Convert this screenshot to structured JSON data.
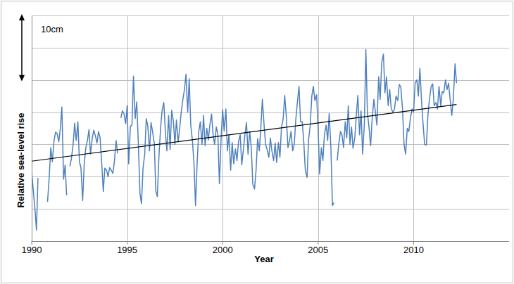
{
  "chart_data": {
    "type": "line",
    "x_label": "Year",
    "y_label": "Relative sea-level rise",
    "annotations": [
      {
        "text": "10cm",
        "value": 10
      }
    ],
    "xlim": [
      1990,
      2015
    ],
    "ylim": [
      0,
      35
    ],
    "xticks": [
      1990,
      1995,
      2000,
      2005,
      2010
    ],
    "yticks": [
      0,
      5,
      10,
      15,
      20,
      25,
      30,
      35
    ],
    "grid": true,
    "tick_labels": "x",
    "series": [
      {
        "color": "#4f81bd",
        "x": [
          1990,
          1990.08,
          1990.17,
          1990.25,
          1990.33,
          1990.42,
          1990.5,
          1990.58,
          1990.67,
          1990.75,
          1990.83,
          1990.92,
          1991,
          1991.08,
          1991.17,
          1991.25,
          1991.33,
          1991.42,
          1991.5,
          1991.58,
          1991.67,
          1991.75,
          1991.83,
          1991.92,
          1992,
          1992.08,
          1992.17,
          1992.25,
          1992.33,
          1992.42,
          1992.5,
          1992.58,
          1992.67,
          1992.75,
          1992.83,
          1992.92,
          1993,
          1993.08,
          1993.17,
          1993.25,
          1993.33,
          1993.42,
          1993.5,
          1993.58,
          1993.67,
          1993.75,
          1993.83,
          1993.92,
          1994,
          1994.08,
          1994.17,
          1994.25,
          1994.33,
          1994.42,
          1994.5,
          1994.58,
          1994.67,
          1994.75,
          1994.83,
          1994.92,
          1995,
          1995.08,
          1995.17,
          1995.25,
          1995.33,
          1995.42,
          1995.5,
          1995.58,
          1995.67,
          1995.75,
          1995.83,
          1995.92,
          1996,
          1996.08,
          1996.17,
          1996.25,
          1996.33,
          1996.42,
          1996.5,
          1996.58,
          1996.67,
          1996.75,
          1996.83,
          1996.92,
          1997,
          1997.08,
          1997.17,
          1997.25,
          1997.33,
          1997.42,
          1997.5,
          1997.58,
          1997.67,
          1997.75,
          1997.83,
          1997.92,
          1998,
          1998.08,
          1998.17,
          1998.25,
          1998.33,
          1998.42,
          1998.5,
          1998.58,
          1998.67,
          1998.75,
          1998.83,
          1998.92,
          1999,
          1999.08,
          1999.17,
          1999.25,
          1999.33,
          1999.42,
          1999.5,
          1999.58,
          1999.67,
          1999.75,
          1999.83,
          1999.92,
          2000,
          2000.08,
          2000.17,
          2000.25,
          2000.33,
          2000.42,
          2000.5,
          2000.58,
          2000.67,
          2000.75,
          2000.83,
          2000.92,
          2001,
          2001.08,
          2001.17,
          2001.25,
          2001.33,
          2001.42,
          2001.5,
          2001.58,
          2001.67,
          2001.75,
          2001.83,
          2001.92,
          2002,
          2002.08,
          2002.17,
          2002.25,
          2002.33,
          2002.42,
          2002.5,
          2002.58,
          2002.67,
          2002.75,
          2002.83,
          2002.92,
          2003,
          2003.08,
          2003.17,
          2003.25,
          2003.33,
          2003.42,
          2003.5,
          2003.58,
          2003.67,
          2003.75,
          2003.83,
          2003.92,
          2004,
          2004.08,
          2004.17,
          2004.25,
          2004.33,
          2004.42,
          2004.5,
          2004.58,
          2004.67,
          2004.75,
          2004.83,
          2004.92,
          2005,
          2005.08,
          2005.17,
          2005.25,
          2005.33,
          2005.42,
          2005.5,
          2005.58,
          2005.67,
          2005.75,
          2005.83,
          2005.92,
          2006,
          2006.08,
          2006.17,
          2006.25,
          2006.33,
          2006.42,
          2006.5,
          2006.58,
          2006.67,
          2006.75,
          2006.83,
          2006.92,
          2007,
          2007.08,
          2007.17,
          2007.25,
          2007.33,
          2007.42,
          2007.5,
          2007.58,
          2007.67,
          2007.75,
          2007.83,
          2007.92,
          2008,
          2008.08,
          2008.17,
          2008.25,
          2008.33,
          2008.42,
          2008.5,
          2008.58,
          2008.67,
          2008.75,
          2008.83,
          2008.92,
          2009,
          2009.08,
          2009.17,
          2009.25,
          2009.33,
          2009.42,
          2009.5,
          2009.58,
          2009.67,
          2009.75,
          2009.83,
          2009.92,
          2010,
          2010.08,
          2010.17,
          2010.25,
          2010.33,
          2010.42,
          2010.5,
          2010.58,
          2010.67,
          2010.75,
          2010.83,
          2010.92,
          2011,
          2011.08,
          2011.17,
          2011.25,
          2011.33,
          2011.42,
          2011.5,
          2011.58,
          2011.67,
          2011.75,
          2011.83,
          2011.92,
          2012,
          2012.08,
          2012.17,
          2012.25
        ],
        "values": [
          10.7,
          8.0,
          5.0,
          1.7,
          9.8,
          null,
          null,
          null,
          null,
          null,
          6.1,
          10.0,
          14.5,
          12.3,
          15.6,
          16.9,
          16.7,
          15.4,
          17.5,
          20.8,
          9.6,
          11.8,
          7.1,
          null,
          11.6,
          12.8,
          15.0,
          18.3,
          15.6,
          18.5,
          12.3,
          11.4,
          6.3,
          11.9,
          14.4,
          15.6,
          17.3,
          13.5,
          15.9,
          17.2,
          16.4,
          15.2,
          17.0,
          16.1,
          12.0,
          7.7,
          11.3,
          11.0,
          10.0,
          11.4,
          11.0,
          10.5,
          12.3,
          15.6,
          13.6,
          null,
          19.1,
          20.2,
          19.8,
          18.2,
          21.0,
          12.0,
          17.8,
          18.0,
          25.6,
          19.0,
          21.6,
          15.6,
          7.4,
          5.8,
          11.3,
          13.5,
          19.0,
          17.9,
          14.0,
          18.4,
          17.0,
          15.2,
          7.8,
          6.9,
          13.5,
          17.5,
          20.3,
          21.5,
          17.0,
          14.0,
          19.5,
          14.2,
          20.3,
          18.6,
          15.0,
          18.8,
          15.4,
          17.5,
          20.0,
          22.0,
          23.5,
          25.9,
          20.0,
          25.2,
          18.0,
          15.5,
          12.0,
          5.5,
          12.5,
          17.0,
          18.5,
          15.0,
          19.5,
          14.8,
          17.5,
          15.7,
          18.0,
          19.7,
          16.5,
          15.0,
          17.7,
          16.5,
          8.9,
          16.0,
          20.4,
          17.1,
          20.5,
          14.0,
          16.5,
          11.0,
          15.3,
          12.0,
          14.3,
          12.5,
          15.4,
          16.5,
          11.8,
          14.0,
          16.6,
          18.4,
          13.5,
          17.0,
          14.5,
          8.8,
          8.1,
          11.0,
          15.9,
          14.0,
          17.6,
          22.0,
          18.0,
          15.0,
          14.2,
          13.0,
          16.0,
          14.0,
          12.5,
          15.2,
          12.2,
          15.3,
          13.0,
          17.6,
          19.0,
          22.6,
          19.5,
          14.5,
          15.5,
          17.0,
          14.0,
          15.0,
          18.8,
          21.7,
          24.0,
          18.5,
          18.5,
          15.3,
          11.0,
          9.9,
          15.8,
          17.7,
          22.5,
          24.0,
          21.8,
          22.7,
          17.5,
          10.4,
          14.5,
          12.5,
          16.5,
          18.0,
          15.6,
          19.8,
          14.5,
          5.5,
          6.0,
          null,
          12.5,
          15.0,
          17.0,
          16.5,
          14.5,
          18.5,
          16.0,
          21.0,
          15.0,
          17.7,
          14.4,
          16.0,
          19.5,
          22.6,
          16.5,
          20.2,
          13.5,
          18.0,
          29.7,
          20.0,
          17.5,
          14.8,
          19.0,
          22.0,
          20.0,
          18.0,
          25.5,
          22.0,
          27.7,
          29.0,
          23.0,
          25.5,
          21.0,
          23.5,
          20.5,
          20.0,
          20.5,
          22.5,
          21.8,
          24.3,
          23.9,
          20.5,
          15.0,
          13.5,
          17.5,
          17.0,
          19.0,
          20.5,
          20.0,
          24.5,
          25.0,
          22.5,
          26.8,
          21.5,
          18.0,
          15.0,
          14.9,
          19.5,
          22.0,
          24.0,
          24.4,
          21.0,
          21.5,
          20.5,
          24.0,
          21.0,
          23.2,
          23.0,
          25.0,
          23.5,
          24.5,
          21.8,
          19.5,
          22.0,
          27.5,
          24.5
        ]
      },
      {
        "type": "line",
        "color": "#000000",
        "x": [
          1990,
          2012.25
        ],
        "values": [
          12.4,
          21.2
        ]
      }
    ]
  }
}
